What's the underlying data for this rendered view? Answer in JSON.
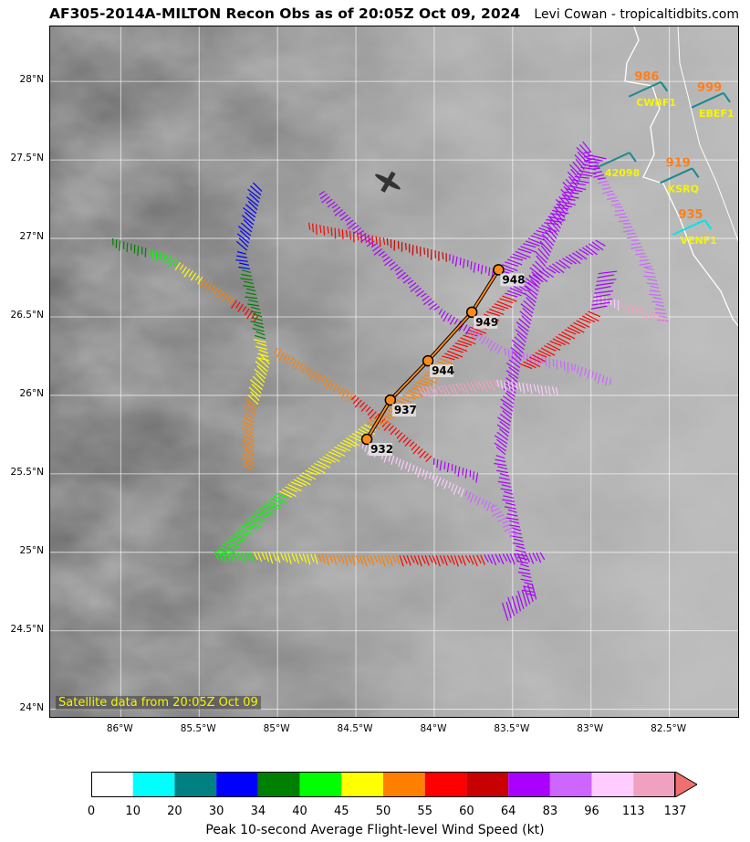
{
  "title": "AF305-2014A-MILTON Recon Obs as of 20:05Z Oct 09, 2024",
  "credit": "Levi Cowan - tropicaltidbits.com",
  "satellite_note": "Satellite data from 20:05Z Oct 09",
  "y_ticks": [
    "28°N",
    "27.5°N",
    "27°N",
    "26.5°N",
    "26°N",
    "25.5°N",
    "25°N",
    "24.5°N",
    "24°N"
  ],
  "x_ticks": [
    "86°W",
    "85.5°W",
    "85°W",
    "84.5°W",
    "84°W",
    "83.5°W",
    "83°W",
    "82.5°W"
  ],
  "center_fixes": [
    {
      "pressure": "932",
      "lon": -84.43,
      "lat": 25.72
    },
    {
      "pressure": "937",
      "lon": -84.28,
      "lat": 25.97
    },
    {
      "pressure": "944",
      "lon": -84.04,
      "lat": 26.22
    },
    {
      "pressure": "949",
      "lon": -83.76,
      "lat": 26.53
    },
    {
      "pressure": "948",
      "lon": -83.59,
      "lat": 26.8
    }
  ],
  "stations": [
    {
      "id": "CWBF1",
      "pressure": "986",
      "lon": -82.7,
      "lat": 27.95,
      "color": "#1a8a8a"
    },
    {
      "id": "EBEF1",
      "pressure": "999",
      "lon": -82.3,
      "lat": 27.88,
      "color": "#1a8a8a"
    },
    {
      "id": "42098",
      "pressure": "",
      "lon": -82.9,
      "lat": 27.5,
      "color": "#1a8a8a"
    },
    {
      "id": "KSRQ",
      "pressure": "919",
      "lon": -82.5,
      "lat": 27.4,
      "color": "#1a8a8a"
    },
    {
      "id": "VENF1",
      "pressure": "935",
      "lon": -82.42,
      "lat": 27.07,
      "color": "#00e5e5"
    }
  ],
  "colorbar": {
    "label": "Peak 10-second Average Flight-level Wind Speed (kt)",
    "ticks": [
      "0",
      "10",
      "20",
      "30",
      "34",
      "40",
      "45",
      "50",
      "55",
      "60",
      "64",
      "83",
      "96",
      "113",
      "137"
    ],
    "colors": [
      "#ffffff",
      "#00ffff",
      "#008080",
      "#0000ff",
      "#008000",
      "#00ff00",
      "#ffff00",
      "#ff8000",
      "#ff0000",
      "#c80000",
      "#aa00ff",
      "#cc66ff",
      "#ffccff",
      "#f0a0c0"
    ],
    "extend_color": "#f07070"
  },
  "map": {
    "lon_min": -86.45,
    "lon_max": -82.05,
    "lat_min": 23.94,
    "lat_max": 28.35
  }
}
